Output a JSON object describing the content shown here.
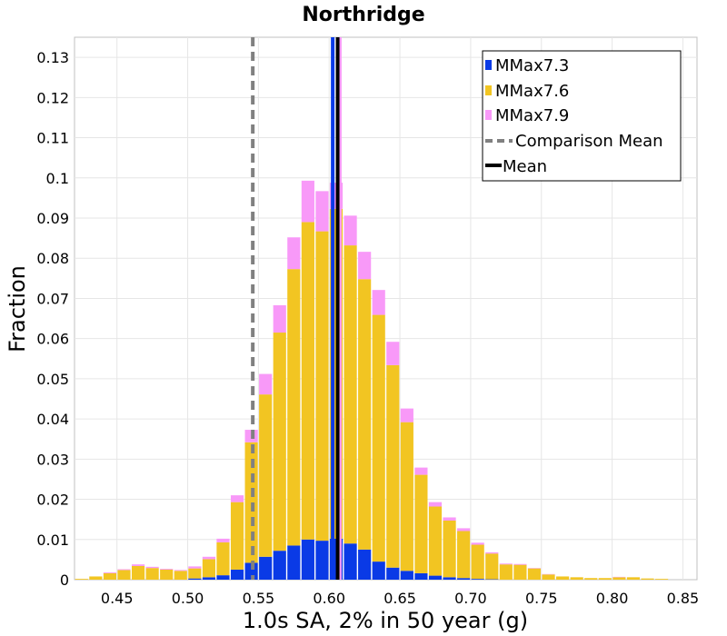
{
  "chart_data": {
    "type": "bar",
    "stacked": true,
    "title": "Northridge",
    "xlabel": "1.0s SA, 2% in 50 year (g)",
    "ylabel": "Fraction",
    "xlim": [
      0.42,
      0.86
    ],
    "ylim": [
      0,
      0.135
    ],
    "bin_width": 0.01,
    "grid": true,
    "legend_position": "top-right",
    "x_ticks": [
      "0.45",
      "0.50",
      "0.55",
      "0.60",
      "0.65",
      "0.70",
      "0.75",
      "0.80",
      "0.85"
    ],
    "y_ticks": [
      "0",
      "0.01",
      "0.02",
      "0.03",
      "0.04",
      "0.05",
      "0.06",
      "0.07",
      "0.08",
      "0.09",
      "0.1",
      "0.11",
      "0.12",
      "0.13"
    ],
    "x": [
      0.425,
      0.435,
      0.445,
      0.455,
      0.465,
      0.475,
      0.485,
      0.495,
      0.505,
      0.515,
      0.525,
      0.535,
      0.545,
      0.555,
      0.565,
      0.575,
      0.585,
      0.595,
      0.605,
      0.615,
      0.625,
      0.635,
      0.645,
      0.655,
      0.665,
      0.675,
      0.685,
      0.695,
      0.705,
      0.715,
      0.725,
      0.735,
      0.745,
      0.755,
      0.765,
      0.775,
      0.785,
      0.795,
      0.805,
      0.815,
      0.825,
      0.835
    ],
    "series": [
      {
        "name": "MMax7.3",
        "color": "#0a3ae6",
        "values": [
          0,
          0,
          0,
          0,
          0,
          0,
          0,
          0,
          0.0003,
          0.0006,
          0.0011,
          0.0025,
          0.0042,
          0.0057,
          0.0072,
          0.0085,
          0.01,
          0.0097,
          0.0102,
          0.009,
          0.0075,
          0.0045,
          0.003,
          0.0022,
          0.0016,
          0.001,
          0.0006,
          0.0004,
          0.0002,
          0.0001,
          0,
          0,
          0,
          0,
          0,
          0,
          0,
          0,
          0,
          0,
          0,
          0
        ]
      },
      {
        "name": "MMax7.6",
        "color": "#f2c522",
        "values": [
          0.0002,
          0.0008,
          0.0016,
          0.0024,
          0.0034,
          0.0029,
          0.0025,
          0.0022,
          0.0025,
          0.0045,
          0.0082,
          0.0168,
          0.03,
          0.0404,
          0.0543,
          0.0688,
          0.079,
          0.077,
          0.0821,
          0.0742,
          0.0673,
          0.0614,
          0.0504,
          0.037,
          0.0245,
          0.0172,
          0.0141,
          0.0117,
          0.0085,
          0.0064,
          0.0038,
          0.0037,
          0.0028,
          0.0013,
          0.0008,
          0.0006,
          0.0004,
          0.0004,
          0.0006,
          0.0006,
          0.0003,
          0.0002
        ]
      },
      {
        "name": "MMax7.9",
        "color": "#f899f8",
        "values": [
          0,
          0,
          0.0002,
          0.0002,
          0.0004,
          0.0003,
          0.0002,
          0.0002,
          0.0005,
          0.0006,
          0.0009,
          0.0017,
          0.0031,
          0.0051,
          0.0068,
          0.0079,
          0.0103,
          0.01,
          0.0065,
          0.0074,
          0.0068,
          0.0062,
          0.0058,
          0.0034,
          0.0018,
          0.0011,
          0.0008,
          0.0007,
          0.0005,
          0.0003,
          0.0002,
          0.0002,
          0.0001,
          0.0001,
          0,
          0,
          0,
          0,
          0.0001,
          0,
          0,
          0
        ]
      }
    ],
    "lines": [
      {
        "name": "Comparison Mean",
        "x": 0.546,
        "color": "#808080",
        "style": "dashed"
      },
      {
        "name": "Mean",
        "x": 0.606,
        "color": "#000000",
        "style": "solid"
      }
    ],
    "extra_lines": [
      {
        "x": 0.6025,
        "color": "#0a3ae6"
      },
      {
        "x": 0.6075,
        "color": "#f899f8"
      }
    ]
  }
}
